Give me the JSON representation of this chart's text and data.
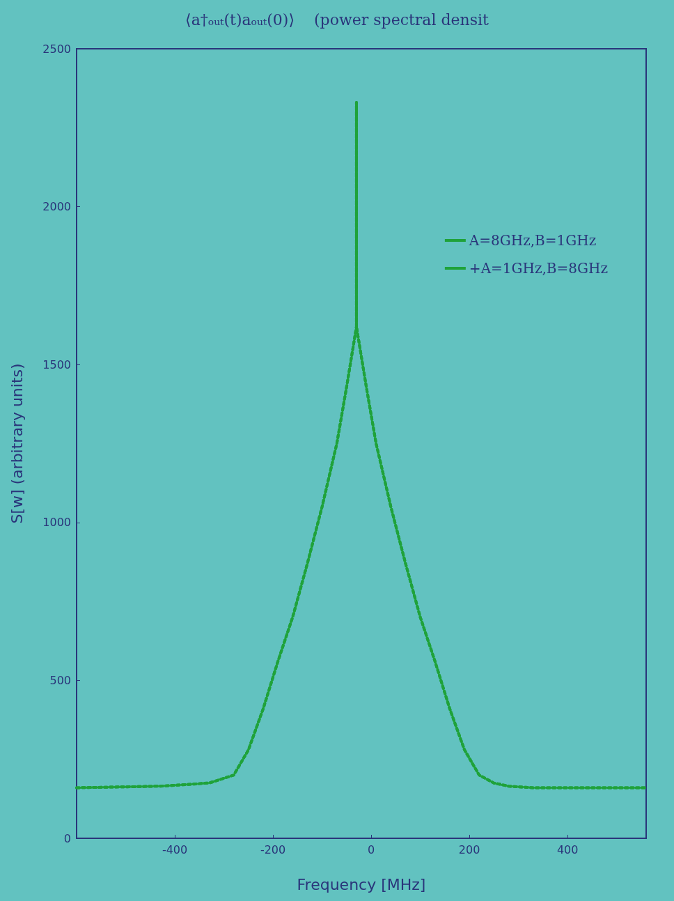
{
  "chart_data": {
    "type": "line",
    "title": "⟨a†ₒᵤₜ(t)aₒᵤₜ(0)⟩    (power spectral densit",
    "xlabel": "Frequency [MHz]",
    "ylabel": "S[w] (arbitrary units)",
    "xlim": [
      -600,
      560
    ],
    "xticks": [
      -400,
      -200,
      0,
      200,
      400
    ],
    "ylim": [
      0,
      2500
    ],
    "yticks": [
      0,
      500,
      1000,
      1500,
      2000,
      2500
    ],
    "grid": false,
    "legend": "top right",
    "line_style": "dotted",
    "marker": "none",
    "series": [
      {
        "name": "A=8GHz,B=1GHz",
        "color": "#1fa23a",
        "x": [
          -600,
          -430,
          -330,
          -280,
          -250,
          -220,
          -190,
          -160,
          -130,
          -100,
          -70,
          -50,
          -30,
          -30,
          -30,
          -10,
          10,
          40,
          70,
          100,
          130,
          160,
          190,
          220,
          250,
          280,
          330,
          430,
          560
        ],
        "values": [
          160,
          165,
          175,
          200,
          280,
          410,
          560,
          700,
          870,
          1050,
          1250,
          1430,
          1620,
          2330,
          1620,
          1430,
          1250,
          1050,
          870,
          700,
          560,
          410,
          280,
          200,
          175,
          165,
          160,
          160,
          160
        ]
      },
      {
        "name": "+A=1GHz,B=8GHz",
        "color": "#1fa23a",
        "x": [
          -600,
          -430,
          -330,
          -280,
          -250,
          -220,
          -190,
          -160,
          -130,
          -100,
          -70,
          -50,
          -30,
          -30,
          -30,
          -10,
          10,
          40,
          70,
          100,
          130,
          160,
          190,
          220,
          250,
          280,
          330,
          430,
          560
        ],
        "values": [
          160,
          165,
          175,
          200,
          280,
          410,
          560,
          700,
          870,
          1050,
          1250,
          1430,
          1620,
          2330,
          1620,
          1430,
          1250,
          1050,
          870,
          700,
          560,
          410,
          280,
          200,
          175,
          165,
          160,
          160,
          160
        ]
      }
    ]
  }
}
